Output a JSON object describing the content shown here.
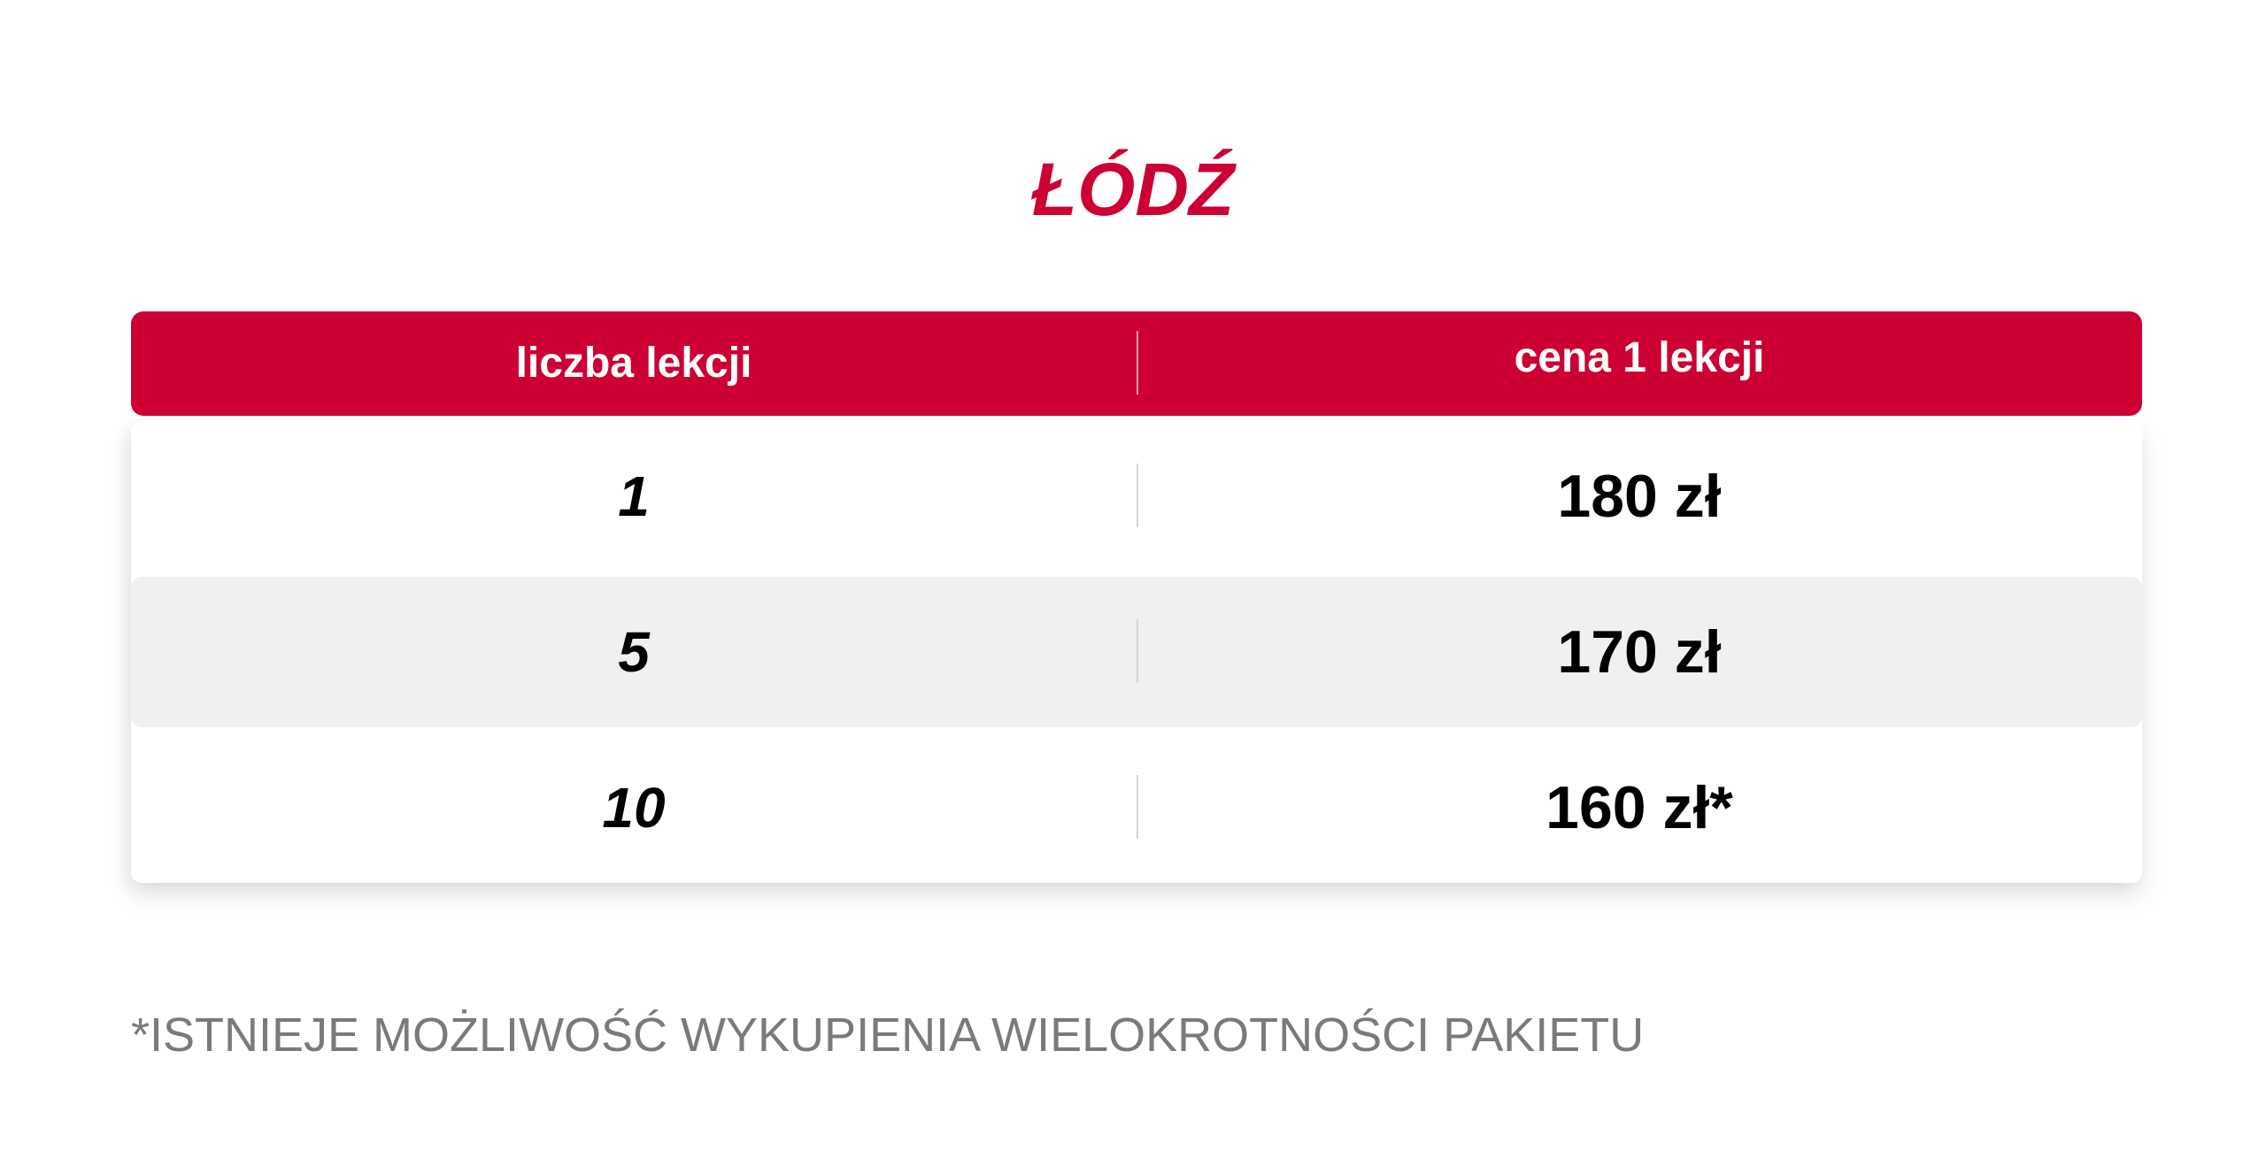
{
  "title": "ŁÓDŹ",
  "table": {
    "headers": [
      "liczba lekcji",
      "cena 1 lekcji"
    ],
    "rows": [
      {
        "lessons": "1",
        "price": "180 zł"
      },
      {
        "lessons": "5",
        "price": "170 zł"
      },
      {
        "lessons": "10",
        "price": "160 zł*"
      }
    ]
  },
  "footnote": "*ISTNIEJE MOŻLIWOŚĆ WYKUPIENIA WIELOKROTNOŚCI PAKIETU",
  "colors": {
    "accent": "#cc0033",
    "header_text": "#ffffff",
    "row_alt": "#f0f0f0",
    "footnote_text": "#7a7a7a"
  }
}
